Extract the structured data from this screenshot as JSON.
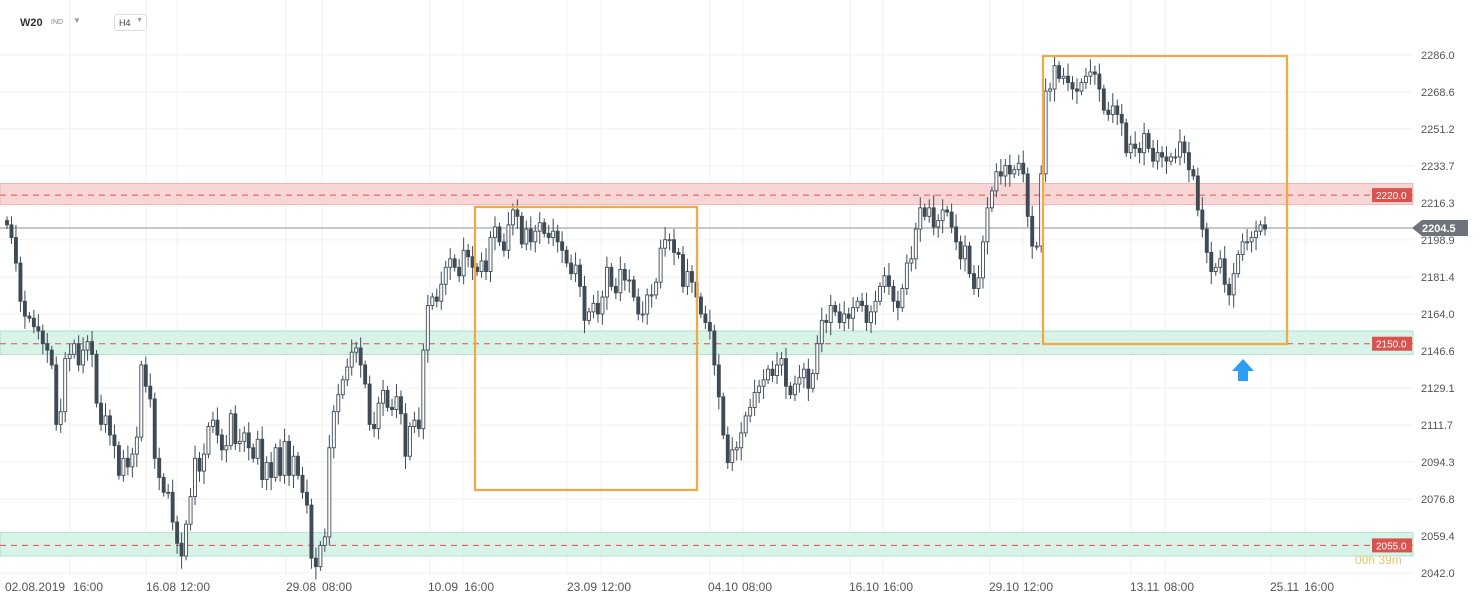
{
  "toolbar": {
    "symbol": "W20",
    "symbol_type": "IND",
    "timeframe": "H4"
  },
  "colors": {
    "candle": "#3e4a55",
    "resistance_zone": "#f9d6d6",
    "support_zone": "#d8f3e8",
    "level_line": "#d9534f",
    "price_tag": "#d9534f",
    "current_tag": "#6e7479",
    "box": "#f5a742",
    "arrow": "#2e9ef3",
    "grid": "#f0f0f0"
  },
  "chart_data": {
    "type": "candlestick",
    "y_axis_ticks": [
      "2286.0",
      "2268.6",
      "2251.2",
      "2233.7",
      "2216.3",
      "2198.9",
      "2181.4",
      "2164.0",
      "2146.6",
      "2129.1",
      "2111.7",
      "2094.3",
      "2076.8",
      "2059.4",
      "2042.0"
    ],
    "x_axis_ticks": [
      "02.08.2019",
      "16:00",
      "16.08",
      "12:00",
      "29.08",
      "08:00",
      "10.09",
      "16:00",
      "23.09",
      "12:00",
      "04.10",
      "08:00",
      "16.10",
      "16:00",
      "29.10",
      "12:00",
      "13.11",
      "08:00",
      "25.11",
      "16:00"
    ],
    "ylim": [
      2042.0,
      2286.0
    ],
    "current_price": "2204.5",
    "countdown_text": "00h 39m",
    "levels": [
      {
        "label": "2220.0",
        "value": 2220.0,
        "zone": [
          2215.5,
          2225.5
        ],
        "kind": "resistance"
      },
      {
        "label": "2150.0",
        "value": 2150.0,
        "zone": [
          2145.0,
          2156.0
        ],
        "kind": "support"
      },
      {
        "label": "2055.0",
        "value": 2055.0,
        "zone": [
          2050.0,
          2061.0
        ],
        "kind": "support"
      }
    ],
    "closes": [
      2206,
      2200,
      2188,
      2170,
      2163,
      2162,
      2158,
      2156,
      2150,
      2147,
      2140,
      2112,
      2118,
      2143,
      2145,
      2150,
      2140,
      2147,
      2151,
      2145,
      2122,
      2112,
      2116,
      2107,
      2102,
      2088,
      2096,
      2092,
      2098,
      2106,
      2140,
      2130,
      2124,
      2096,
      2087,
      2080,
      2080,
      2066,
      2056,
      2050,
      2065,
      2078,
      2096,
      2090,
      2098,
      2111,
      2114,
      2107,
      2100,
      2102,
      2117,
      2103,
      2104,
      2108,
      2101,
      2096,
      2105,
      2086,
      2094,
      2087,
      2101,
      2088,
      2104,
      2088,
      2097,
      2088,
      2080,
      2074,
      2049,
      2045,
      2055,
      2059,
      2101,
      2118,
      2126,
      2133,
      2139,
      2146,
      2148,
      2140,
      2131,
      2112,
      2110,
      2122,
      2128,
      2120,
      2119,
      2125,
      2117,
      2097,
      2111,
      2114,
      2110,
      2147,
      2168,
      2172,
      2170,
      2178,
      2186,
      2190,
      2186,
      2182,
      2194,
      2191,
      2186,
      2184,
      2189,
      2184,
      2200,
      2205,
      2198,
      2194,
      2206,
      2213,
      2210,
      2197,
      2204,
      2198,
      2203,
      2207,
      2202,
      2200,
      2203,
      2198,
      2194,
      2188,
      2183,
      2187,
      2177,
      2161,
      2165,
      2169,
      2164,
      2172,
      2186,
      2177,
      2174,
      2185,
      2180,
      2180,
      2172,
      2164,
      2164,
      2173,
      2173,
      2179,
      2195,
      2199,
      2199,
      2193,
      2192,
      2177,
      2184,
      2179,
      2172,
      2164,
      2160,
      2156,
      2140,
      2125,
      2107,
      2094,
      2100,
      2101,
      2108,
      2116,
      2120,
      2127,
      2130,
      2133,
      2138,
      2135,
      2140,
      2143,
      2130,
      2126,
      2131,
      2134,
      2138,
      2129,
      2136,
      2150,
      2161,
      2160,
      2168,
      2165,
      2160,
      2164,
      2162,
      2167,
      2170,
      2168,
      2160,
      2165,
      2170,
      2177,
      2182,
      2177,
      2170,
      2167,
      2176,
      2188,
      2190,
      2204,
      2214,
      2210,
      2214,
      2205,
      2208,
      2213,
      2212,
      2205,
      2198,
      2190,
      2196,
      2183,
      2176,
      2181,
      2198,
      2214,
      2222,
      2231,
      2229,
      2234,
      2230,
      2232,
      2235,
      2230,
      2210,
      2196,
      2196,
      2230,
      2269,
      2270,
      2281,
      2275,
      2276,
      2273,
      2270,
      2269,
      2273,
      2276,
      2278,
      2277,
      2270,
      2260,
      2258,
      2262,
      2258,
      2254,
      2240,
      2244,
      2242,
      2240,
      2249,
      2242,
      2236,
      2240,
      2238,
      2236,
      2238,
      2238,
      2245,
      2240,
      2232,
      2229,
      2213,
      2204,
      2193,
      2184,
      2186,
      2190,
      2178,
      2173,
      2183,
      2192,
      2198,
      2198,
      2200,
      2203,
      2206,
      2204
    ]
  }
}
